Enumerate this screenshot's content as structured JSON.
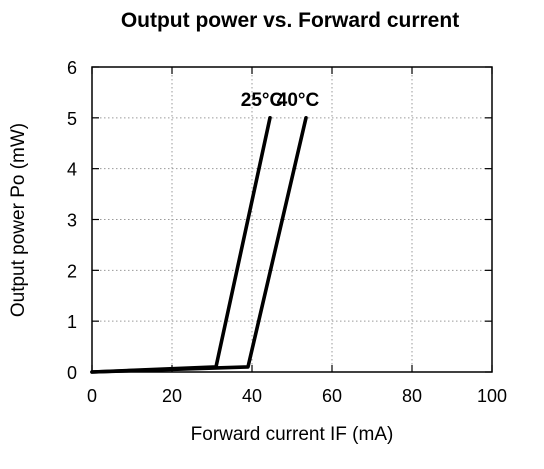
{
  "chart_data": {
    "type": "line",
    "title": "Output power vs. Forward current",
    "xlabel": "Forward current IF (mA)",
    "ylabel": "Output power  Po (mW)",
    "xlim": [
      0,
      100
    ],
    "ylim": [
      0,
      6
    ],
    "xticks": [
      "0",
      "20",
      "40",
      "60",
      "80",
      "100"
    ],
    "yticks": [
      "0",
      "1",
      "2",
      "3",
      "4",
      "5",
      "6"
    ],
    "grid": true,
    "series": [
      {
        "name": "25°C",
        "x": [
          0,
          31,
          44.5
        ],
        "y": [
          0,
          0.1,
          5.0
        ]
      },
      {
        "name": "40°C",
        "x": [
          0,
          39,
          53.5
        ],
        "y": [
          0,
          0.1,
          5.0
        ]
      }
    ]
  }
}
